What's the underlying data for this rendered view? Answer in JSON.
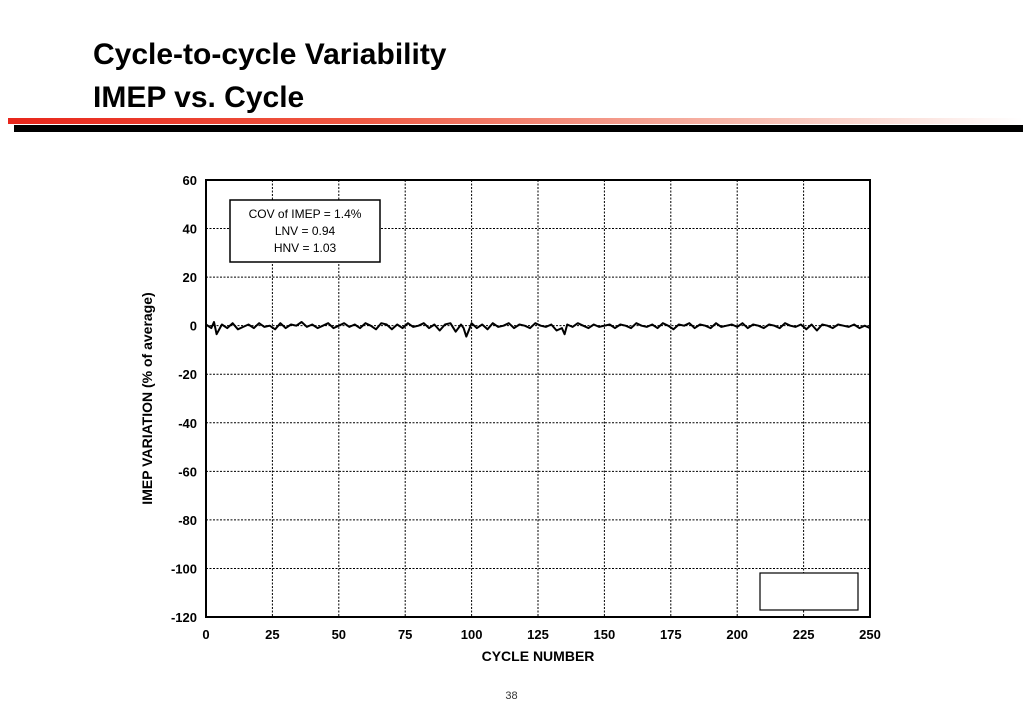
{
  "slide": {
    "title_line1": "Cycle-to-cycle Variability",
    "title_line2": "IMEP vs. Cycle",
    "page_number": "38"
  },
  "colors": {
    "accent_red": "#e8261b",
    "rule_black": "#000000"
  },
  "chart_data": {
    "type": "line",
    "title": "",
    "xlabel": "CYCLE NUMBER",
    "ylabel": "IMEP VARIATION (% of average)",
    "xlim": [
      0,
      250
    ],
    "ylim": [
      -120,
      60
    ],
    "xticks": [
      0,
      25,
      50,
      75,
      100,
      125,
      150,
      175,
      200,
      225,
      250
    ],
    "yticks": [
      60,
      40,
      20,
      0,
      -20,
      -40,
      -60,
      -80,
      -100,
      -120
    ],
    "grid": true,
    "annotations": [
      "COV of IMEP = 1.4%",
      "LNV = 0.94",
      "HNV = 1.03"
    ],
    "series": [
      {
        "x": [
          0,
          2,
          3,
          4,
          6,
          8,
          10,
          12,
          14,
          16,
          18,
          20,
          22,
          24,
          26,
          28,
          30,
          32,
          34,
          36,
          38,
          40,
          42,
          44,
          46,
          48,
          50,
          52,
          54,
          56,
          58,
          60,
          62,
          64,
          66,
          68,
          70,
          72,
          74,
          76,
          78,
          80,
          82,
          84,
          86,
          88,
          90,
          92,
          94,
          96,
          97,
          98,
          100,
          102,
          104,
          106,
          108,
          110,
          112,
          114,
          116,
          118,
          120,
          122,
          124,
          126,
          128,
          130,
          132,
          134,
          135,
          136,
          138,
          140,
          142,
          144,
          146,
          148,
          150,
          152,
          154,
          156,
          158,
          160,
          162,
          164,
          166,
          168,
          170,
          172,
          174,
          176,
          178,
          180,
          182,
          184,
          186,
          188,
          190,
          192,
          194,
          196,
          198,
          200,
          202,
          204,
          206,
          208,
          210,
          212,
          214,
          216,
          218,
          220,
          222,
          224,
          226,
          228,
          230,
          232,
          234,
          236,
          238,
          240,
          242,
          244,
          246,
          248,
          250
        ],
        "values": [
          0.5,
          -1.0,
          1.5,
          -3.5,
          0.5,
          -1.0,
          1.0,
          -1.5,
          -0.5,
          0.5,
          -1.0,
          1.0,
          -0.5,
          0.0,
          -1.5,
          1.0,
          -1.0,
          0.5,
          0.0,
          1.5,
          -0.5,
          0.5,
          -1.0,
          0.0,
          1.0,
          -1.0,
          0.0,
          1.0,
          -0.5,
          0.5,
          -1.0,
          1.0,
          0.0,
          -1.5,
          1.0,
          0.5,
          -1.5,
          0.5,
          -1.0,
          1.0,
          -0.5,
          0.0,
          1.0,
          -1.0,
          0.5,
          -2.0,
          0.5,
          1.0,
          -2.5,
          0.5,
          -1.0,
          -4.5,
          1.0,
          -1.0,
          0.5,
          -1.5,
          1.0,
          -0.5,
          0.0,
          1.0,
          -1.0,
          0.5,
          0.0,
          -1.0,
          1.0,
          0.0,
          -0.5,
          0.5,
          -2.0,
          -1.0,
          -3.5,
          0.5,
          -0.5,
          1.0,
          0.0,
          -1.0,
          0.5,
          -0.5,
          0.0,
          0.5,
          -1.0,
          0.5,
          0.0,
          -1.0,
          1.0,
          0.0,
          -0.5,
          0.5,
          -1.0,
          1.0,
          0.0,
          -1.5,
          0.5,
          0.0,
          1.0,
          -1.0,
          0.5,
          0.0,
          -1.0,
          1.0,
          -0.5,
          0.0,
          0.5,
          -0.5,
          1.0,
          -1.0,
          0.5,
          0.0,
          -1.0,
          0.5,
          0.0,
          -1.0,
          1.0,
          0.0,
          -0.5,
          0.5,
          -1.5,
          0.5,
          -2.0,
          0.5,
          0.0,
          -1.0,
          0.5,
          0.0,
          -0.5,
          0.5,
          -1.0,
          0.0,
          -1.0
        ]
      }
    ]
  }
}
